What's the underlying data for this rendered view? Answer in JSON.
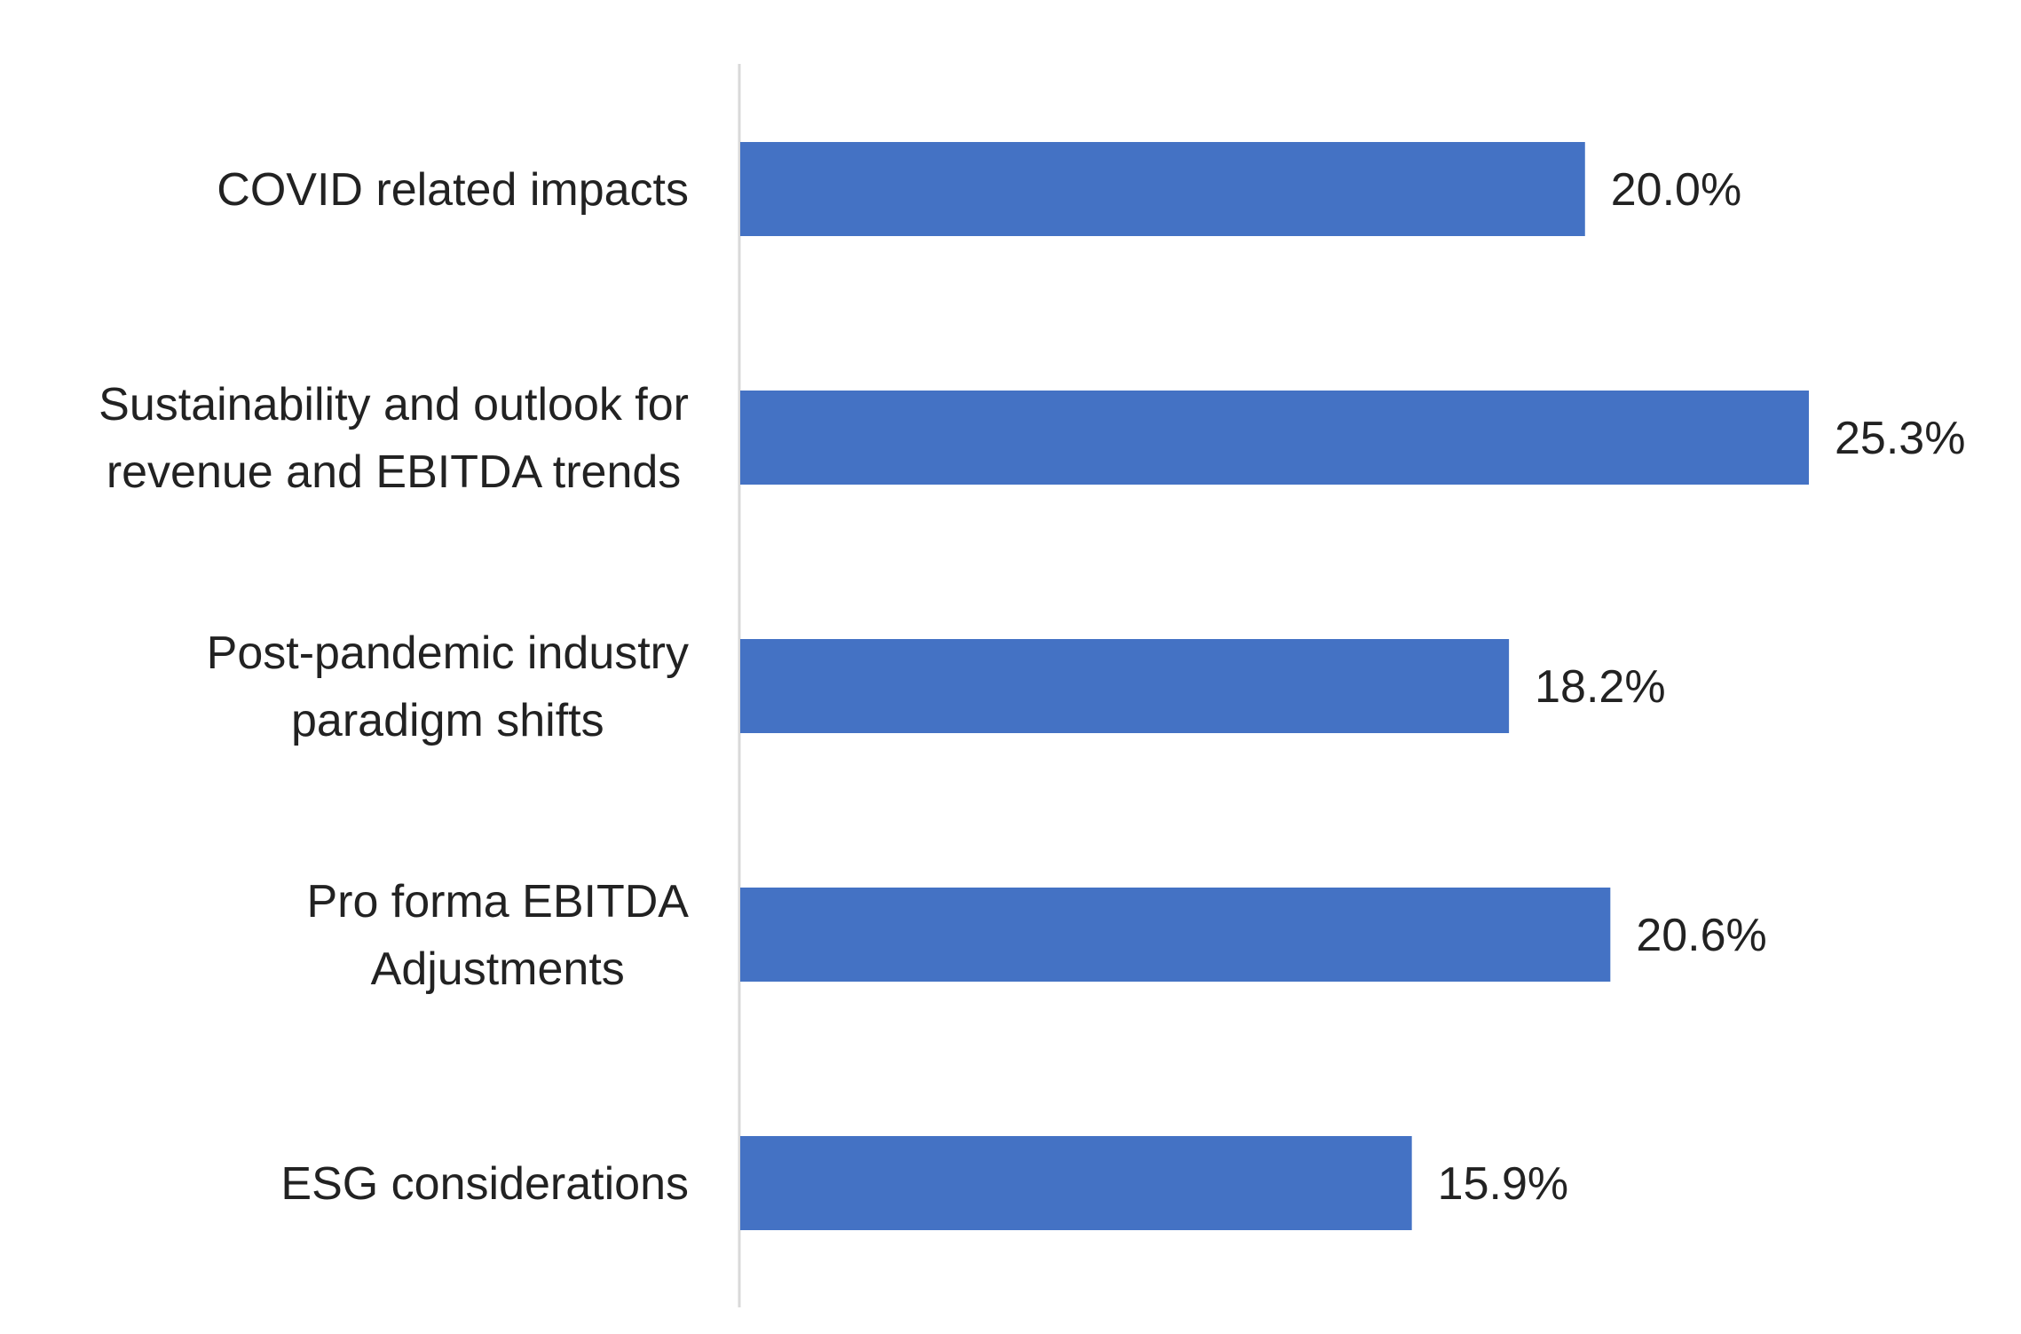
{
  "chart_data": {
    "type": "bar",
    "orientation": "horizontal",
    "categories": [
      [
        "COVID related impacts"
      ],
      [
        "Sustainability and outlook for",
        "revenue and EBITDA trends"
      ],
      [
        "Post-pandemic industry",
        "paradigm shifts"
      ],
      [
        "Pro forma EBITDA",
        "Adjustments"
      ],
      [
        "ESG considerations"
      ]
    ],
    "values": [
      20.0,
      25.3,
      18.2,
      20.6,
      15.9
    ],
    "data_labels": [
      "20.0%",
      "25.3%",
      "18.2%",
      "20.6%",
      "15.9%"
    ],
    "xlim": [
      0,
      25.3
    ],
    "grid": false,
    "legend": "none",
    "colors": {
      "bar": "#4472C4",
      "axis": "#D9D9D9",
      "text": "#222222"
    }
  }
}
